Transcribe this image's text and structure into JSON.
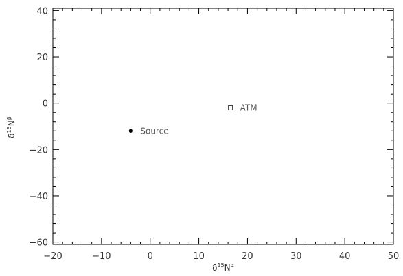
{
  "chart_data": {
    "type": "scatter",
    "title": "",
    "xlabel": {
      "base": "δ",
      "sup1": "15",
      "main": "N",
      "sup2": "α"
    },
    "ylabel": {
      "base": "δ",
      "sup1": "15",
      "main": "N",
      "sup2": "β"
    },
    "xlim": [
      -20,
      50
    ],
    "ylim": [
      -61,
      41
    ],
    "xticks": [
      -20,
      -10,
      0,
      10,
      20,
      30,
      40,
      50
    ],
    "yticks": [
      -60,
      -40,
      -20,
      0,
      20,
      40
    ],
    "x_minor_step": 2,
    "y_minor_step": 4,
    "grid": false,
    "series": [
      {
        "points": [
          {
            "x": -4,
            "y": -12,
            "label": "Source",
            "marker": "filled-circle"
          },
          {
            "x": 16.5,
            "y": -2,
            "label": "ATM",
            "marker": "open-square"
          }
        ]
      }
    ]
  }
}
